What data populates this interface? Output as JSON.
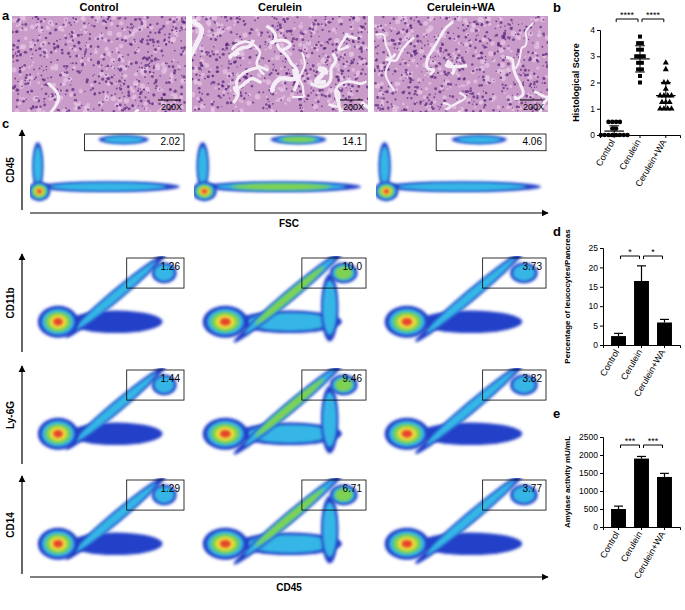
{
  "panel_labels": [
    "a",
    "b",
    "c",
    "d",
    "e"
  ],
  "columns": [
    "Control",
    "Cerulein",
    "Cerulein+WA"
  ],
  "histology": {
    "magnification": "200X"
  },
  "flow": {
    "rows": [
      {
        "y_label": "CD45",
        "x_label": "FSC",
        "gates": [
          "2.02",
          "14.1",
          "4.06"
        ]
      },
      {
        "y_label": "CD11b",
        "gates": [
          "1.26",
          "10.0",
          "3.73"
        ]
      },
      {
        "y_label": "Ly-6G",
        "gates": [
          "1.44",
          "9.46",
          "3.82"
        ]
      },
      {
        "y_label": "CD14",
        "x_label": "CD45",
        "gates": [
          "1.29",
          "6.71",
          "3.77"
        ]
      }
    ]
  },
  "chart_data": [
    {
      "type": "dot",
      "y_label": "Histological Score",
      "categories": [
        "Control",
        "Cerulein",
        "Cerulein+WA"
      ],
      "groups": [
        {
          "marker": "circle",
          "values": [
            0.5,
            0.5,
            0.5,
            0.5,
            0.25,
            0.25,
            0,
            0,
            0,
            0,
            0,
            0,
            0,
            0
          ],
          "mean": 0.15,
          "sd": 0.2
        },
        {
          "marker": "square",
          "values": [
            3.75,
            3.5,
            3.5,
            3.25,
            3.25,
            3.0,
            3.0,
            3.0,
            2.75,
            2.75,
            2.5,
            2.5,
            2.25,
            2.0
          ],
          "mean": 2.9,
          "sd": 0.5
        },
        {
          "marker": "triangle",
          "values": [
            2.75,
            2.5,
            2.0,
            2.0,
            1.75,
            1.5,
            1.5,
            1.5,
            1.5,
            1.25,
            1.25,
            1.25,
            1.0,
            1.0,
            1.0,
            1.0
          ],
          "mean": 1.5,
          "sd": 0.5
        }
      ],
      "color": "#000000",
      "ylim": [
        0,
        4
      ],
      "yticks": [
        0,
        1,
        2,
        3,
        4
      ],
      "annotations": [
        {
          "text": "****",
          "between": [
            "Control",
            "Cerulein"
          ]
        },
        {
          "text": "****",
          "between": [
            "Cerulein",
            "Cerulein+WA"
          ]
        }
      ]
    },
    {
      "type": "bar",
      "y_label": "Percentage of leucocytes/Pancreas",
      "categories": [
        "Control",
        "Cerulein",
        "Cerulein+WA"
      ],
      "values": [
        2.3,
        16.5,
        5.8
      ],
      "errors": [
        0.7,
        3.9,
        0.8
      ],
      "color": "#000000",
      "ylim": [
        0,
        25
      ],
      "yticks": [
        0,
        5,
        10,
        15,
        20,
        25
      ],
      "annotations": [
        {
          "text": "*",
          "between": [
            "Control",
            "Cerulein"
          ]
        },
        {
          "text": "*",
          "between": [
            "Cerulein",
            "Cerulein+WA"
          ]
        }
      ]
    },
    {
      "type": "bar",
      "y_label": "Amylase activity mU/mL",
      "categories": [
        "Control",
        "Cerulein",
        "Cerulein+WA"
      ],
      "values": [
        500,
        1900,
        1390
      ],
      "errors": [
        80,
        60,
        100
      ],
      "color": "#000000",
      "ylim": [
        0,
        2500
      ],
      "yticks": [
        0,
        500,
        1000,
        1500,
        2000,
        2500
      ],
      "annotations": [
        {
          "text": "***",
          "between": [
            "Control",
            "Cerulein"
          ]
        },
        {
          "text": "***",
          "between": [
            "Cerulein",
            "Cerulein+WA"
          ]
        }
      ]
    }
  ]
}
